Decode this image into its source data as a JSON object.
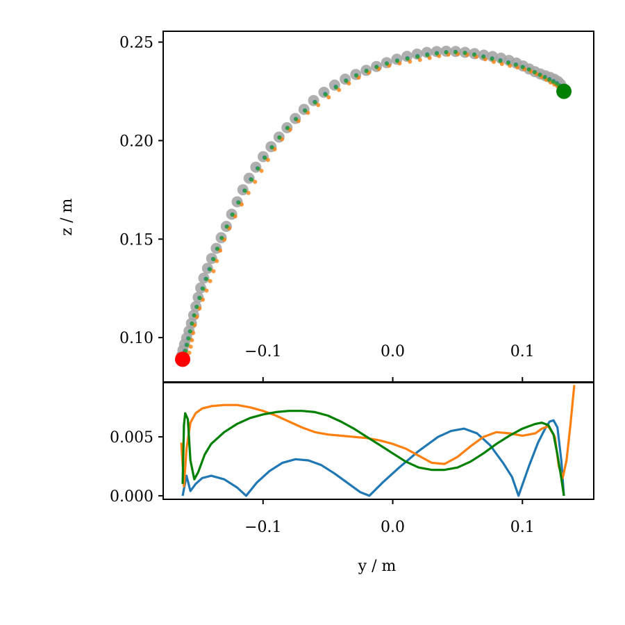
{
  "chart_data": [
    {
      "type": "scatter",
      "panel": "top",
      "xlabel": "",
      "ylabel": "z / m",
      "xlim": [
        -0.177,
        0.155
      ],
      "ylim": [
        0.0775,
        0.2555
      ],
      "xticks": [
        -0.1,
        0.0,
        0.1
      ],
      "xtick_labels": [
        "−0.1",
        "0.0",
        "0.1"
      ],
      "xtick_labels_inside": true,
      "yticks": [
        0.1,
        0.15,
        0.2,
        0.25
      ],
      "ytick_labels": [
        "0.10",
        "0.15",
        "0.20",
        "0.25"
      ],
      "path_control_points": [
        [
          -0.162,
          0.089
        ],
        [
          -0.158,
          0.099
        ],
        [
          -0.152,
          0.114
        ],
        [
          -0.143,
          0.132
        ],
        [
          -0.131,
          0.152
        ],
        [
          -0.114,
          0.175
        ],
        [
          -0.094,
          0.196
        ],
        [
          -0.07,
          0.214
        ],
        [
          -0.04,
          0.229
        ],
        [
          -0.01,
          0.238
        ],
        [
          0.02,
          0.243
        ],
        [
          0.048,
          0.245
        ],
        [
          0.075,
          0.242
        ],
        [
          0.098,
          0.238
        ],
        [
          0.115,
          0.233
        ],
        [
          0.127,
          0.229
        ],
        [
          0.132,
          0.225
        ]
      ],
      "series": [
        {
          "role": "gray",
          "color": "#a6a6a6",
          "marker_size": "large"
        },
        {
          "role": "blue",
          "color": "#1f77b4",
          "marker_size": "small"
        },
        {
          "role": "orange",
          "color": "#ff7f0e",
          "marker_size": "small"
        },
        {
          "role": "green",
          "color": "#2ca02c",
          "marker_size": "small"
        }
      ],
      "start_point": {
        "x": -0.162,
        "y": 0.089,
        "color": "#ff0000"
      },
      "end_point": {
        "x": 0.132,
        "y": 0.225,
        "color": "#008000"
      }
    },
    {
      "type": "line",
      "panel": "bottom",
      "xlabel": "y / m",
      "ylabel": "",
      "xlim": [
        -0.177,
        0.155
      ],
      "ylim": [
        -0.0003,
        0.0096
      ],
      "xticks": [
        -0.1,
        0.0,
        0.1
      ],
      "xtick_labels": [
        "−0.1",
        "0.0",
        "0.1"
      ],
      "yticks": [
        0.0,
        0.005
      ],
      "ytick_labels": [
        "0.000",
        "0.005"
      ],
      "series": [
        {
          "color": "#1f77b4",
          "x": [
            -0.162,
            -0.159,
            -0.156,
            -0.152,
            -0.147,
            -0.14,
            -0.13,
            -0.12,
            -0.113,
            -0.105,
            -0.095,
            -0.085,
            -0.075,
            -0.065,
            -0.055,
            -0.045,
            -0.035,
            -0.025,
            -0.018,
            -0.008,
            0.005,
            0.02,
            0.035,
            0.045,
            0.055,
            0.065,
            0.075,
            0.085,
            0.092,
            0.097,
            0.105,
            0.112,
            0.118,
            0.121,
            0.124,
            0.127,
            0.13,
            0.132
          ],
          "y": [
            0.0,
            0.0017,
            0.0004,
            0.001,
            0.0015,
            0.0017,
            0.0014,
            0.0007,
            0.0,
            0.0011,
            0.0021,
            0.0028,
            0.0031,
            0.003,
            0.0026,
            0.0019,
            0.0011,
            0.0003,
            0.0,
            0.0011,
            0.0024,
            0.0038,
            0.005,
            0.0055,
            0.0057,
            0.0053,
            0.0043,
            0.0028,
            0.0016,
            0.0,
            0.0025,
            0.0045,
            0.0058,
            0.0063,
            0.0064,
            0.0058,
            0.003,
            0.0
          ]
        },
        {
          "color": "#ff7f0e",
          "x": [
            -0.163,
            -0.161,
            -0.159,
            -0.156,
            -0.152,
            -0.147,
            -0.14,
            -0.13,
            -0.12,
            -0.11,
            -0.1,
            -0.09,
            -0.08,
            -0.07,
            -0.06,
            -0.05,
            -0.04,
            -0.03,
            -0.02,
            -0.01,
            0.0,
            0.01,
            0.02,
            0.03,
            0.04,
            0.05,
            0.06,
            0.07,
            0.08,
            0.09,
            0.1,
            0.11,
            0.115,
            0.12,
            0.125,
            0.128,
            0.131,
            0.134,
            0.137,
            0.14
          ],
          "y": [
            0.0045,
            0.0008,
            0.004,
            0.0062,
            0.007,
            0.0074,
            0.0076,
            0.0077,
            0.0077,
            0.0075,
            0.0072,
            0.0068,
            0.0063,
            0.0058,
            0.0054,
            0.0052,
            0.0051,
            0.005,
            0.0049,
            0.0047,
            0.0044,
            0.004,
            0.0034,
            0.0028,
            0.0027,
            0.0033,
            0.0042,
            0.005,
            0.0054,
            0.0053,
            0.0051,
            0.0053,
            0.0057,
            0.0059,
            0.005,
            0.0025,
            0.0015,
            0.003,
            0.006,
            0.0094
          ]
        },
        {
          "color": "#008000",
          "x": [
            -0.162,
            -0.161,
            -0.16,
            -0.158,
            -0.156,
            -0.153,
            -0.15,
            -0.145,
            -0.14,
            -0.13,
            -0.12,
            -0.11,
            -0.1,
            -0.09,
            -0.08,
            -0.07,
            -0.06,
            -0.05,
            -0.04,
            -0.03,
            -0.02,
            -0.01,
            0.0,
            0.01,
            0.02,
            0.03,
            0.04,
            0.05,
            0.06,
            0.07,
            0.08,
            0.09,
            0.1,
            0.11,
            0.115,
            0.12,
            0.124,
            0.127,
            0.13,
            0.132
          ],
          "y": [
            0.001,
            0.006,
            0.007,
            0.0065,
            0.003,
            0.0014,
            0.002,
            0.0035,
            0.0044,
            0.0054,
            0.0061,
            0.0066,
            0.0069,
            0.0071,
            0.0072,
            0.0072,
            0.0071,
            0.0068,
            0.0063,
            0.0057,
            0.005,
            0.0043,
            0.0036,
            0.0029,
            0.0024,
            0.0022,
            0.0022,
            0.0024,
            0.0029,
            0.0036,
            0.0044,
            0.0051,
            0.0057,
            0.0061,
            0.0062,
            0.006,
            0.0052,
            0.0035,
            0.0015,
            0.0
          ]
        }
      ]
    }
  ]
}
